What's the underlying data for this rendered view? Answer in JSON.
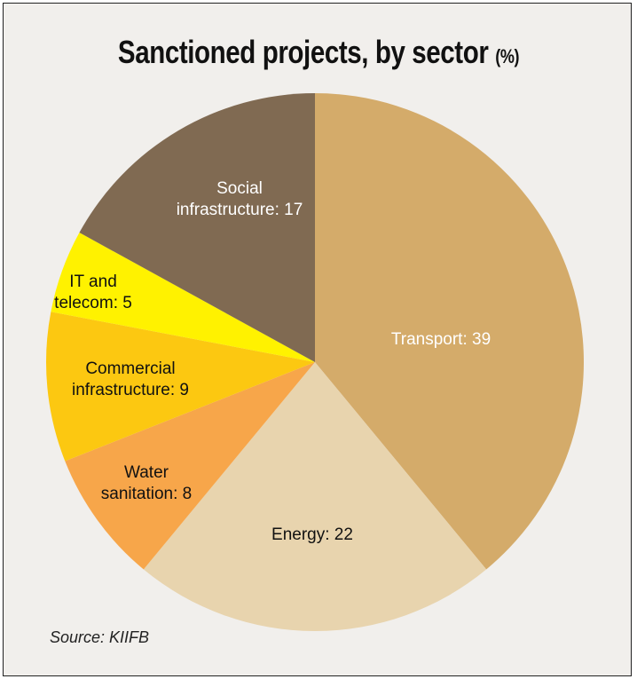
{
  "chart_data": {
    "type": "pie",
    "title": "Sanctioned projects, by sector",
    "title_unit": "(%)",
    "values": [
      39,
      22,
      8,
      9,
      5,
      17
    ],
    "value_labels": [
      "Transport: 39",
      "Energy: 22",
      "Water\nsanitation: 8",
      "Commercial\ninfrastructure: 9",
      "IT and\ntelecom: 5",
      "Social\ninfrastructure: 17"
    ],
    "colors": [
      "#d4ab6a",
      "#e8d4ae",
      "#f7a64a",
      "#fcc811",
      "#fff200",
      "#806a52"
    ],
    "source": "Source: KIIFB"
  }
}
